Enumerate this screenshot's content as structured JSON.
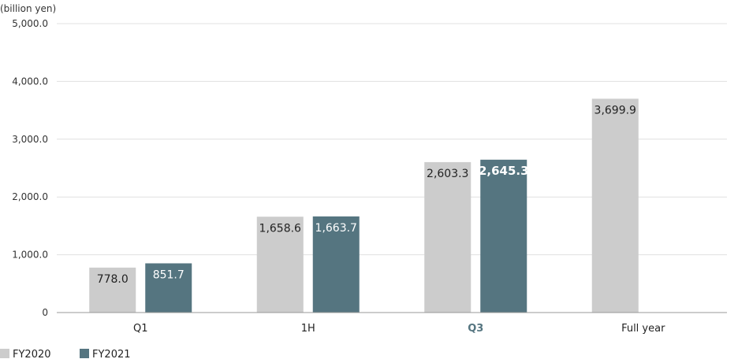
{
  "chart_data": {
    "type": "bar",
    "unit_label": "(billion yen)",
    "categories": [
      "Q1",
      "1H",
      "Q3",
      "Full year"
    ],
    "category_highlight": [
      false,
      false,
      true,
      false
    ],
    "series": [
      {
        "name": "FY2020",
        "color": "#cccccc",
        "values": [
          778.0,
          1658.6,
          2603.3,
          3699.9
        ],
        "labels": [
          "778.0",
          "1,658.6",
          "2,603.3",
          "3,699.9"
        ]
      },
      {
        "name": "FY2021",
        "color": "#557580",
        "values": [
          851.7,
          1663.7,
          2645.3,
          null
        ],
        "labels": [
          "851.7",
          "1,663.7",
          "2,645.3",
          ""
        ],
        "bold_label_index": 2
      }
    ],
    "ylim": [
      0,
      5000
    ],
    "yticks": [
      0,
      1000,
      2000,
      3000,
      4000,
      5000
    ],
    "ytick_labels": [
      "0",
      "1,000.0",
      "2,000.0",
      "3,000.0",
      "4,000.0",
      "5,000.0"
    ],
    "grid": true,
    "legend_position": "bottom-left",
    "highlight_color": "#557580"
  }
}
